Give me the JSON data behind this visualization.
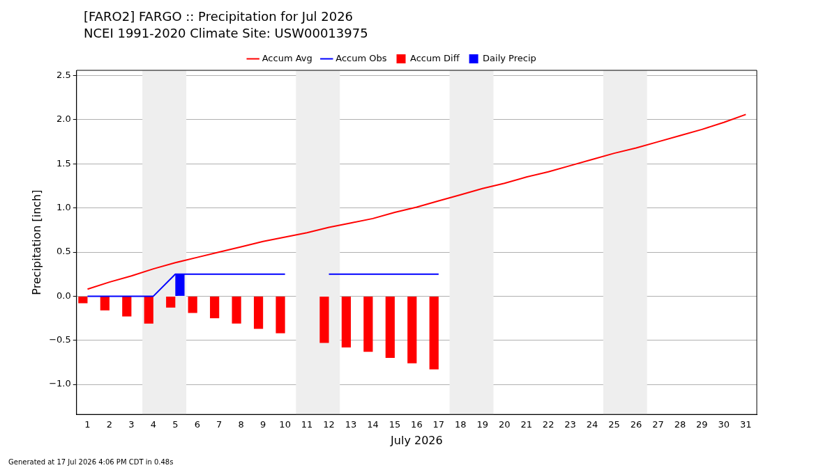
{
  "chart_data": {
    "type": "line",
    "title": "[FARO2] FARGO :: Precipitation for Jul 2026",
    "subtitle": "NCEI 1991-2020 Climate Site: USW00013975",
    "xlabel": "July 2026",
    "ylabel": "Precipitation [inch]",
    "x": [
      1,
      2,
      3,
      4,
      5,
      6,
      7,
      8,
      9,
      10,
      11,
      12,
      13,
      14,
      15,
      16,
      17,
      18,
      19,
      20,
      21,
      22,
      23,
      24,
      25,
      26,
      27,
      28,
      29,
      30,
      31
    ],
    "series": [
      {
        "name": "Accum Avg",
        "color": "#ff0000",
        "values": [
          0.08,
          0.16,
          0.23,
          0.31,
          0.38,
          0.44,
          0.5,
          0.56,
          0.62,
          0.67,
          0.72,
          0.78,
          0.83,
          0.88,
          0.95,
          1.01,
          1.08,
          1.15,
          1.22,
          1.28,
          1.35,
          1.41,
          1.48,
          1.55,
          1.62,
          1.68,
          1.75,
          1.82,
          1.89,
          1.97,
          2.06
        ]
      },
      {
        "name": "Accum Obs",
        "color": "#0000ff",
        "values": [
          0,
          0,
          0,
          0,
          0.25,
          0.25,
          0.25,
          0.25,
          0.25,
          0.25,
          null,
          0.25,
          0.25,
          0.25,
          0.25,
          0.25,
          0.25,
          null,
          null,
          null,
          null,
          null,
          null,
          null,
          null,
          null,
          null,
          null,
          null,
          null,
          null
        ]
      },
      {
        "name": "Accum Diff",
        "type": "bar",
        "color": "#ff0000",
        "values": [
          -0.08,
          -0.16,
          -0.23,
          -0.31,
          -0.13,
          -0.19,
          -0.25,
          -0.31,
          -0.37,
          -0.42,
          null,
          -0.53,
          -0.58,
          -0.63,
          -0.7,
          -0.76,
          -0.83,
          null,
          null,
          null,
          null,
          null,
          null,
          null,
          null,
          null,
          null,
          null,
          null,
          null,
          null
        ]
      },
      {
        "name": "Daily Precip",
        "type": "bar",
        "color": "#0000ff",
        "values": [
          null,
          null,
          null,
          null,
          0.25,
          null,
          null,
          null,
          null,
          null,
          null,
          null,
          null,
          null,
          null,
          null,
          null,
          null,
          null,
          null,
          null,
          null,
          null,
          null,
          null,
          null,
          null,
          null,
          null,
          null,
          null
        ]
      }
    ],
    "xlim": [
      0.5,
      31.5
    ],
    "xticks": [
      1,
      2,
      3,
      4,
      5,
      6,
      7,
      8,
      9,
      10,
      11,
      12,
      13,
      14,
      15,
      16,
      17,
      18,
      19,
      20,
      21,
      22,
      23,
      24,
      25,
      26,
      27,
      28,
      29,
      30,
      31
    ],
    "ylim": [
      -1.34,
      2.56
    ],
    "yticks": [
      {
        "value": -1,
        "label": "−1.0"
      },
      {
        "value": -0.5,
        "label": "−0.5"
      },
      {
        "value": 0,
        "label": "0.0"
      },
      {
        "value": 0.5,
        "label": "0.5"
      },
      {
        "value": 1,
        "label": "1.0"
      },
      {
        "value": 1.5,
        "label": "1.5"
      },
      {
        "value": 2,
        "label": "2.0"
      },
      {
        "value": 2.5,
        "label": "2.5"
      }
    ],
    "bands": [
      {
        "axis": "x",
        "from": 3.5,
        "to": 5.5,
        "color": "#eeeeee"
      },
      {
        "axis": "x",
        "from": 10.5,
        "to": 12.5,
        "color": "#eeeeee"
      },
      {
        "axis": "x",
        "from": 17.5,
        "to": 19.5,
        "color": "#eeeeee"
      },
      {
        "axis": "x",
        "from": 24.5,
        "to": 26.5,
        "color": "#eeeeee"
      }
    ],
    "grid": "y",
    "legend": "top",
    "marker": "none",
    "line_style": "solid",
    "annotations": [
      "Generated at 17 Jul 2026 4:06 PM CDT in 0.48s"
    ]
  }
}
